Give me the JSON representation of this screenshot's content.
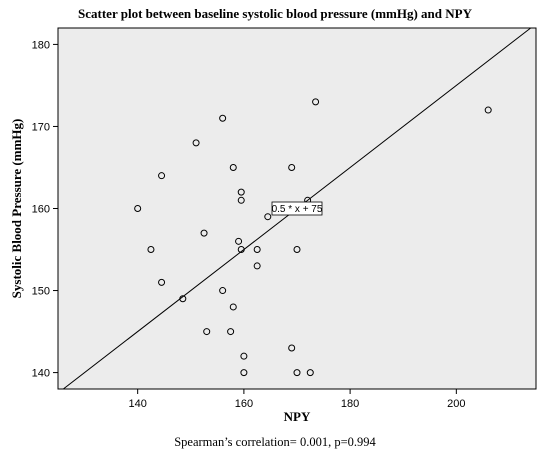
{
  "chart_data": {
    "type": "scatter",
    "title": "Scatter plot between baseline systolic blood pressure (mmHg) and NPY",
    "xlabel": "NPY",
    "ylabel": "Systolic Blood Pressure (mmHg)",
    "xlim": [
      125,
      215
    ],
    "ylim": [
      138,
      182
    ],
    "xticks": [
      140,
      160,
      180,
      200
    ],
    "yticks": [
      140,
      150,
      160,
      170,
      180
    ],
    "grid": false,
    "background": "#ececec",
    "marker": "open-circle",
    "points": [
      {
        "x": 140,
        "y": 160
      },
      {
        "x": 142.5,
        "y": 155
      },
      {
        "x": 144.5,
        "y": 164
      },
      {
        "x": 144.5,
        "y": 151
      },
      {
        "x": 148.5,
        "y": 149
      },
      {
        "x": 151,
        "y": 168
      },
      {
        "x": 152.5,
        "y": 157
      },
      {
        "x": 153,
        "y": 145
      },
      {
        "x": 156,
        "y": 171
      },
      {
        "x": 156,
        "y": 150
      },
      {
        "x": 157.5,
        "y": 145
      },
      {
        "x": 158,
        "y": 165
      },
      {
        "x": 158,
        "y": 148
      },
      {
        "x": 159,
        "y": 156
      },
      {
        "x": 159.5,
        "y": 162
      },
      {
        "x": 159.5,
        "y": 161
      },
      {
        "x": 159.5,
        "y": 155
      },
      {
        "x": 160,
        "y": 142
      },
      {
        "x": 160,
        "y": 140
      },
      {
        "x": 162.5,
        "y": 155
      },
      {
        "x": 162.5,
        "y": 153
      },
      {
        "x": 164.5,
        "y": 159
      },
      {
        "x": 169,
        "y": 165
      },
      {
        "x": 169,
        "y": 143
      },
      {
        "x": 170,
        "y": 155
      },
      {
        "x": 170,
        "y": 140
      },
      {
        "x": 172,
        "y": 161
      },
      {
        "x": 172.5,
        "y": 140
      },
      {
        "x": 173.5,
        "y": 173
      },
      {
        "x": 206,
        "y": 172
      }
    ],
    "fit_line": {
      "slope": 0.5,
      "intercept": 75,
      "label": "0.5 * x + 75"
    },
    "caption": "Spearman’s correlation= 0.001, p=0.994"
  }
}
